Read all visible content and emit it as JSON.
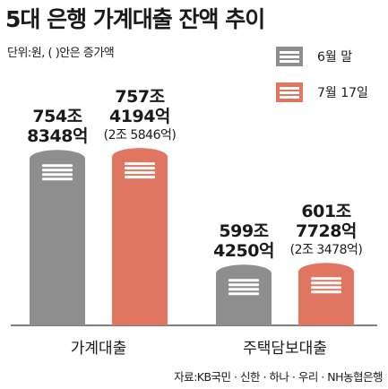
{
  "title": "5대 은행 가계대출 잔액 추이",
  "unit_note": "단위:원, (    )안은 증가액",
  "source": "자료:KB국민 · 신한 · 하나 · 우리 · NH농협은행",
  "colors": {
    "june": "#8e8e8e",
    "july": "#e07661",
    "baseline": "#555555"
  },
  "chart_data": {
    "type": "bar",
    "categories": [
      "가계대출",
      "주택담보대출"
    ],
    "series": [
      {
        "name": "6월 말",
        "values": [
          7548348,
          5994250
        ],
        "labels": [
          "754조\n8348억",
          "599조\n4250억"
        ]
      },
      {
        "name": "7월 17일",
        "values": [
          7574194,
          6017728
        ],
        "labels": [
          "757조\n4194억",
          "601조\n7728억"
        ],
        "diffs": [
          "(2조 5846억)",
          "(2조 3478억)"
        ]
      }
    ],
    "unit": "억원"
  }
}
